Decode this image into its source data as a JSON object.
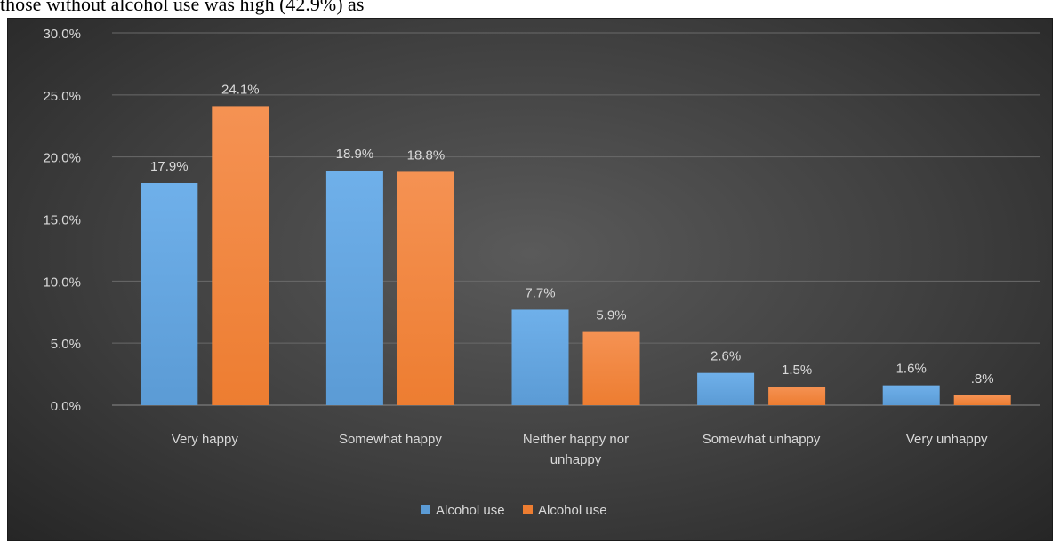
{
  "document": {
    "text_line": "those without alcohol use was high (42.9%) as"
  },
  "colors": {
    "series_1": "#5b9bd5",
    "series_2": "#ed7d31",
    "grid": "#6a6a6a",
    "text": "#d9d9d9"
  },
  "chart_data": {
    "type": "bar",
    "title": "",
    "xlabel": "",
    "ylabel": "",
    "ylim": [
      0,
      30
    ],
    "yticks": [
      "0.0%",
      "5.0%",
      "10.0%",
      "15.0%",
      "20.0%",
      "25.0%",
      "30.0%"
    ],
    "categories": [
      [
        "Very happy"
      ],
      [
        "Somewhat happy"
      ],
      [
        "Neither happy nor",
        "unhappy"
      ],
      [
        "Somewhat unhappy"
      ],
      [
        "Very unhappy"
      ]
    ],
    "series": [
      {
        "name": "Alcohol use",
        "values": [
          17.9,
          18.9,
          7.7,
          2.6,
          1.6
        ],
        "labels": [
          "17.9%",
          "18.9%",
          "7.7%",
          "2.6%",
          "1.6%"
        ]
      },
      {
        "name": "Alcohol use",
        "values": [
          24.1,
          18.8,
          5.9,
          1.5,
          0.8
        ],
        "labels": [
          "24.1%",
          "18.8%",
          "5.9%",
          "1.5%",
          ".8%"
        ]
      }
    ],
    "grid": true,
    "legend": "bottom"
  }
}
